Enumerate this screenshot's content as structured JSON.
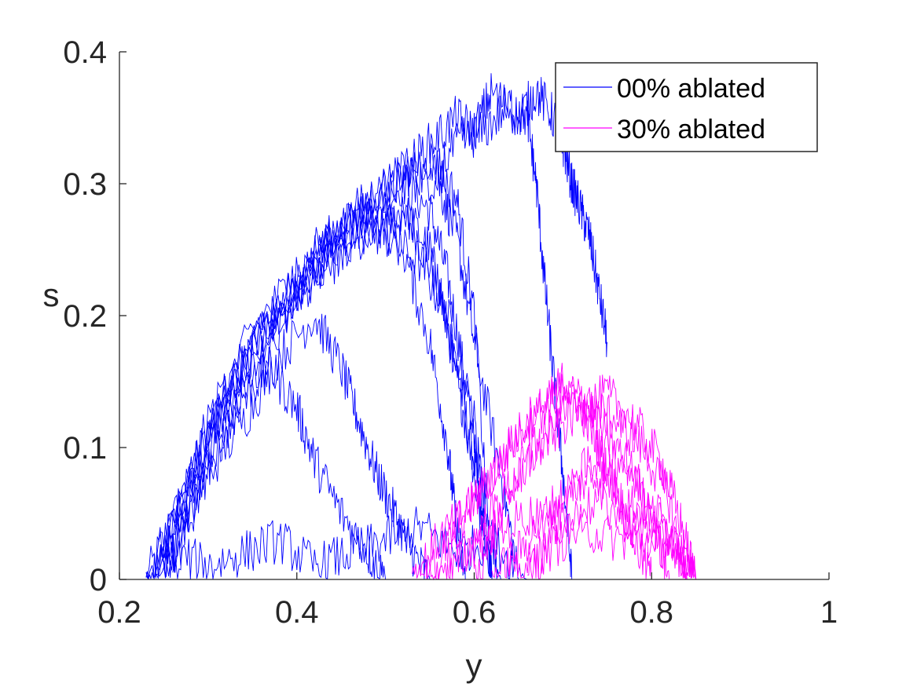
{
  "chart_data": {
    "type": "line",
    "title": "",
    "xlabel": "y",
    "ylabel": "s",
    "xlim": [
      0.2,
      1.0
    ],
    "ylim": [
      0,
      0.4
    ],
    "x_ticks": [
      "0.2",
      "0.4",
      "0.6",
      "0.8",
      "1"
    ],
    "y_ticks": [
      "0",
      "0.1",
      "0.2",
      "0.3",
      "0.4"
    ],
    "grid": false,
    "legend_position": "top-right",
    "colors": {
      "series_0": "#0000ff",
      "series_1": "#ff00ff",
      "axis": "#262626"
    },
    "series": [
      {
        "name": "00% ablated",
        "color": "#0000ff",
        "trajectories": [
          {
            "x": [
              0.23,
              0.27,
              0.32,
              0.37,
              0.42,
              0.47,
              0.5,
              0.53,
              0.56,
              0.58,
              0.6,
              0.61,
              0.62
            ],
            "y": [
              0,
              0.06,
              0.13,
              0.19,
              0.23,
              0.26,
              0.28,
              0.27,
              0.22,
              0.16,
              0.09,
              0.04,
              0
            ]
          },
          {
            "x": [
              0.23,
              0.28,
              0.33,
              0.38,
              0.43,
              0.48,
              0.52,
              0.55,
              0.57,
              0.59,
              0.61,
              0.63
            ],
            "y": [
              0,
              0.08,
              0.15,
              0.2,
              0.24,
              0.28,
              0.3,
              0.28,
              0.23,
              0.15,
              0.07,
              0
            ]
          },
          {
            "x": [
              0.24,
              0.29,
              0.34,
              0.39,
              0.44,
              0.49,
              0.52,
              0.55,
              0.57,
              0.59,
              0.62
            ],
            "y": [
              0,
              0.09,
              0.16,
              0.21,
              0.24,
              0.26,
              0.28,
              0.25,
              0.19,
              0.12,
              0
            ]
          },
          {
            "x": [
              0.24,
              0.3,
              0.35,
              0.4,
              0.45,
              0.5,
              0.53,
              0.56,
              0.58,
              0.6,
              0.63,
              0.65
            ],
            "y": [
              0,
              0.1,
              0.18,
              0.22,
              0.26,
              0.29,
              0.31,
              0.3,
              0.26,
              0.18,
              0.08,
              0
            ]
          },
          {
            "x": [
              0.24,
              0.28,
              0.32,
              0.37,
              0.42,
              0.46,
              0.5,
              0.54,
              0.57,
              0.6,
              0.62
            ],
            "y": [
              0,
              0.08,
              0.14,
              0.2,
              0.25,
              0.27,
              0.26,
              0.24,
              0.2,
              0.12,
              0
            ]
          },
          {
            "x": [
              0.25,
              0.29,
              0.34,
              0.38,
              0.42,
              0.45,
              0.47,
              0.49,
              0.51,
              0.53,
              0.55
            ],
            "y": [
              0,
              0.07,
              0.12,
              0.17,
              0.2,
              0.16,
              0.12,
              0.08,
              0.05,
              0.02,
              0
            ]
          },
          {
            "x": [
              0.25,
              0.3,
              0.35,
              0.4,
              0.45,
              0.5,
              0.55,
              0.58,
              0.6,
              0.62
            ],
            "y": [
              0,
              0.11,
              0.19,
              0.23,
              0.27,
              0.3,
              0.32,
              0.29,
              0.2,
              0
            ]
          },
          {
            "x": [
              0.26,
              0.3,
              0.35,
              0.4,
              0.44,
              0.48,
              0.52,
              0.55,
              0.57,
              0.58,
              0.59
            ],
            "y": [
              0,
              0.09,
              0.15,
              0.22,
              0.26,
              0.28,
              0.25,
              0.18,
              0.1,
              0.04,
              0
            ]
          },
          {
            "x": [
              0.25,
              0.28,
              0.31,
              0.34,
              0.37,
              0.4,
              0.42,
              0.45,
              0.48,
              0.5
            ],
            "y": [
              0,
              0.05,
              0.1,
              0.14,
              0.16,
              0.13,
              0.09,
              0.05,
              0.02,
              0
            ]
          },
          {
            "x": [
              0.24,
              0.3,
              0.36,
              0.42,
              0.48,
              0.52,
              0.55,
              0.58,
              0.6,
              0.62,
              0.65,
              0.67,
              0.69,
              0.7,
              0.71,
              0.72,
              0.73,
              0.74,
              0.75
            ],
            "y": [
              0,
              0.12,
              0.19,
              0.24,
              0.28,
              0.31,
              0.33,
              0.35,
              0.34,
              0.37,
              0.35,
              0.37,
              0.35,
              0.33,
              0.3,
              0.28,
              0.26,
              0.22,
              0.18
            ]
          },
          {
            "x": [
              0.55,
              0.58,
              0.61,
              0.64,
              0.66,
              0.67,
              0.68,
              0.69,
              0.7,
              0.71
            ],
            "y": [
              0.3,
              0.33,
              0.34,
              0.36,
              0.35,
              0.3,
              0.22,
              0.15,
              0.08,
              0
            ]
          },
          {
            "x": [
              0.23,
              0.26,
              0.3,
              0.34,
              0.38,
              0.42,
              0.46,
              0.5,
              0.54,
              0.58,
              0.62,
              0.66
            ],
            "y": [
              0,
              0.02,
              0.01,
              0.02,
              0.03,
              0.01,
              0.02,
              0.03,
              0.04,
              0.02,
              0.03,
              0
            ]
          }
        ]
      },
      {
        "name": "30% ablated",
        "color": "#ff00ff",
        "trajectories": [
          {
            "x": [
              0.53,
              0.56,
              0.59,
              0.62,
              0.65,
              0.68,
              0.7,
              0.72,
              0.74,
              0.76,
              0.78,
              0.8
            ],
            "y": [
              0,
              0.03,
              0.05,
              0.08,
              0.11,
              0.13,
              0.15,
              0.13,
              0.1,
              0.07,
              0.03,
              0
            ]
          },
          {
            "x": [
              0.55,
              0.58,
              0.61,
              0.64,
              0.67,
              0.7,
              0.73,
              0.76,
              0.79,
              0.82,
              0.84
            ],
            "y": [
              0,
              0.04,
              0.07,
              0.1,
              0.13,
              0.14,
              0.13,
              0.12,
              0.1,
              0.06,
              0
            ]
          },
          {
            "x": [
              0.57,
              0.6,
              0.63,
              0.66,
              0.69,
              0.72,
              0.75,
              0.78,
              0.81,
              0.83,
              0.85
            ],
            "y": [
              0,
              0.03,
              0.06,
              0.09,
              0.11,
              0.13,
              0.14,
              0.12,
              0.09,
              0.05,
              0
            ]
          },
          {
            "x": [
              0.6,
              0.63,
              0.66,
              0.69,
              0.72,
              0.74,
              0.77,
              0.8,
              0.82
            ],
            "y": [
              0,
              0.05,
              0.09,
              0.12,
              0.14,
              0.12,
              0.09,
              0.05,
              0
            ]
          },
          {
            "x": [
              0.62,
              0.65,
              0.68,
              0.71,
              0.74,
              0.77,
              0.8,
              0.83,
              0.85
            ],
            "y": [
              0,
              0.02,
              0.05,
              0.07,
              0.08,
              0.06,
              0.05,
              0.03,
              0
            ]
          },
          {
            "x": [
              0.64,
              0.68,
              0.72,
              0.76,
              0.8,
              0.83,
              0.85
            ],
            "y": [
              0,
              0.02,
              0.04,
              0.03,
              0.03,
              0.02,
              0
            ]
          },
          {
            "x": [
              0.54,
              0.58,
              0.62,
              0.66,
              0.7,
              0.74,
              0.78,
              0.82,
              0.85
            ],
            "y": [
              0,
              0.02,
              0.03,
              0.05,
              0.04,
              0.06,
              0.04,
              0.03,
              0
            ]
          },
          {
            "x": [
              0.66,
              0.69,
              0.72,
              0.75,
              0.78,
              0.81,
              0.84
            ],
            "y": [
              0,
              0.04,
              0.08,
              0.1,
              0.08,
              0.05,
              0
            ]
          }
        ]
      }
    ]
  }
}
